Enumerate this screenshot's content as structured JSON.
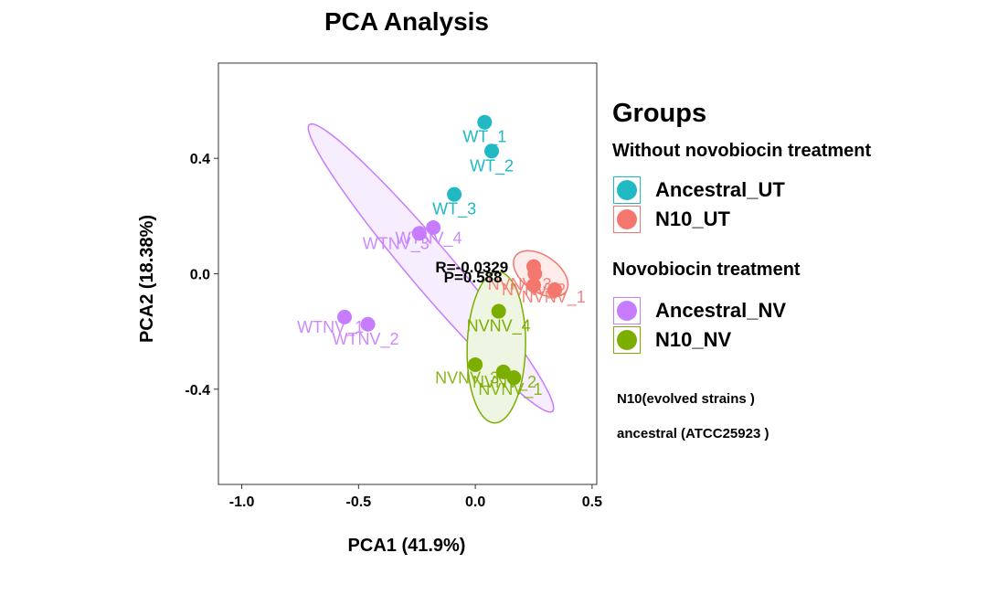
{
  "chart_data": {
    "type": "scatter",
    "title": "PCA Analysis",
    "xlabel": "PCA1 (41.9%)",
    "ylabel": "PCA2 (18.38%)",
    "xlim": [
      -1.1,
      0.52
    ],
    "ylim": [
      -0.73,
      0.73
    ],
    "x_ticks": [
      -1.0,
      -0.5,
      0.0,
      0.5
    ],
    "x_tick_labels": [
      "-1.0",
      "-0.5",
      "0.0",
      "0.5"
    ],
    "y_ticks": [
      -0.4,
      0.0,
      0.4
    ],
    "y_tick_labels": [
      "-0.4",
      "0.0",
      "0.4"
    ],
    "grid": false,
    "legend_position": "right",
    "series": [
      {
        "name": "Ancestral_UT",
        "color": "#1FB8C3",
        "points": [
          {
            "x": 0.04,
            "y": 0.525,
            "label": "WT_1"
          },
          {
            "x": 0.07,
            "y": 0.425,
            "label": "WT_2"
          },
          {
            "x": -0.09,
            "y": 0.275,
            "label": "WT_3"
          }
        ]
      },
      {
        "name": "N10_UT",
        "color": "#F4776E",
        "points": [
          {
            "x": 0.25,
            "y": 0.025
          },
          {
            "x": 0.255,
            "y": 0.0
          },
          {
            "x": 0.25,
            "y": -0.04
          },
          {
            "x": 0.34,
            "y": -0.055
          }
        ]
      },
      {
        "name": "Ancestral_NV",
        "color": "#C77CFF",
        "points": [
          {
            "x": -0.18,
            "y": 0.16
          },
          {
            "x": -0.24,
            "y": 0.14
          },
          {
            "x": -0.56,
            "y": -0.15
          },
          {
            "x": -0.46,
            "y": -0.175
          }
        ]
      },
      {
        "name": "N10_NV",
        "color": "#7CAE00",
        "points": [
          {
            "x": 0.1,
            "y": -0.13,
            "label": "NVNV_4"
          },
          {
            "x": 0.0,
            "y": -0.315
          },
          {
            "x": 0.12,
            "y": -0.34
          },
          {
            "x": 0.165,
            "y": -0.36
          }
        ]
      }
    ],
    "text_labels": [
      {
        "text": "WTNV_3",
        "x": -0.34,
        "y": 0.085,
        "color": "#C77CFF"
      },
      {
        "text": "WTNV_4",
        "x": -0.2,
        "y": 0.105,
        "color": "#C77CFF"
      },
      {
        "text": "WTNV_1",
        "x": -0.62,
        "y": -0.205,
        "color": "#C77CFF"
      },
      {
        "text": "WTNV_2",
        "x": -0.47,
        "y": -0.245,
        "color": "#C77CFF"
      },
      {
        "text": "NVNV_3",
        "x": -0.035,
        "y": -0.38,
        "color": "#7CAE00"
      },
      {
        "text": "NVNV_2",
        "x": 0.125,
        "y": -0.395,
        "color": "#7CAE00"
      },
      {
        "text": "NVNV_1",
        "x": 0.15,
        "y": -0.42,
        "color": "#7CAE00"
      },
      {
        "text": "NVNV_1",
        "x": 0.335,
        "y": -0.1,
        "color": "#F4776E"
      },
      {
        "text": "NVNV_2",
        "x": 0.25,
        "y": -0.075,
        "color": "#F4776E"
      },
      {
        "text": "NVNV_3",
        "x": 0.19,
        "y": -0.055,
        "color": "#F4776E"
      }
    ],
    "ellipses": [
      {
        "group": "Ancestral_NV",
        "color": "#C77CFF",
        "fill": "#F6EEFF",
        "cx": -0.19,
        "cy": 0.02,
        "rx": 0.72,
        "ry": 0.085,
        "angle": -43.5
      },
      {
        "group": "N10_NV",
        "color": "#7CAE00",
        "fill": "#EEF5E2",
        "cx": 0.09,
        "cy": -0.255,
        "rx": 0.125,
        "ry": 0.262,
        "angle": -2
      },
      {
        "group": "N10_UT",
        "color": "#F4776E",
        "fill": "#FDECEA",
        "cx": 0.28,
        "cy": 0.0,
        "rx": 0.125,
        "ry": 0.066,
        "angle": -25
      }
    ],
    "annotations": [
      {
        "text": "R=-0.0329",
        "x": -0.015,
        "y": 0.005
      },
      {
        "text": "P=0.588",
        "x": -0.01,
        "y": -0.03
      }
    ]
  },
  "legend": {
    "title": "Groups",
    "section1_title": "Without novobiocin treatment",
    "section1_items": [
      {
        "label": "Ancestral_UT",
        "color": "#1FB8C3"
      },
      {
        "label": "N10_UT",
        "color": "#F4776E"
      }
    ],
    "section2_title": "Novobiocin treatment",
    "section2_items": [
      {
        "label": "Ancestral_NV",
        "color": "#C77CFF"
      },
      {
        "label": "N10_NV",
        "color": "#7CAE00"
      }
    ],
    "note1": "N10(evolved strains )",
    "note2": "ancestral (ATCC25923 )"
  }
}
